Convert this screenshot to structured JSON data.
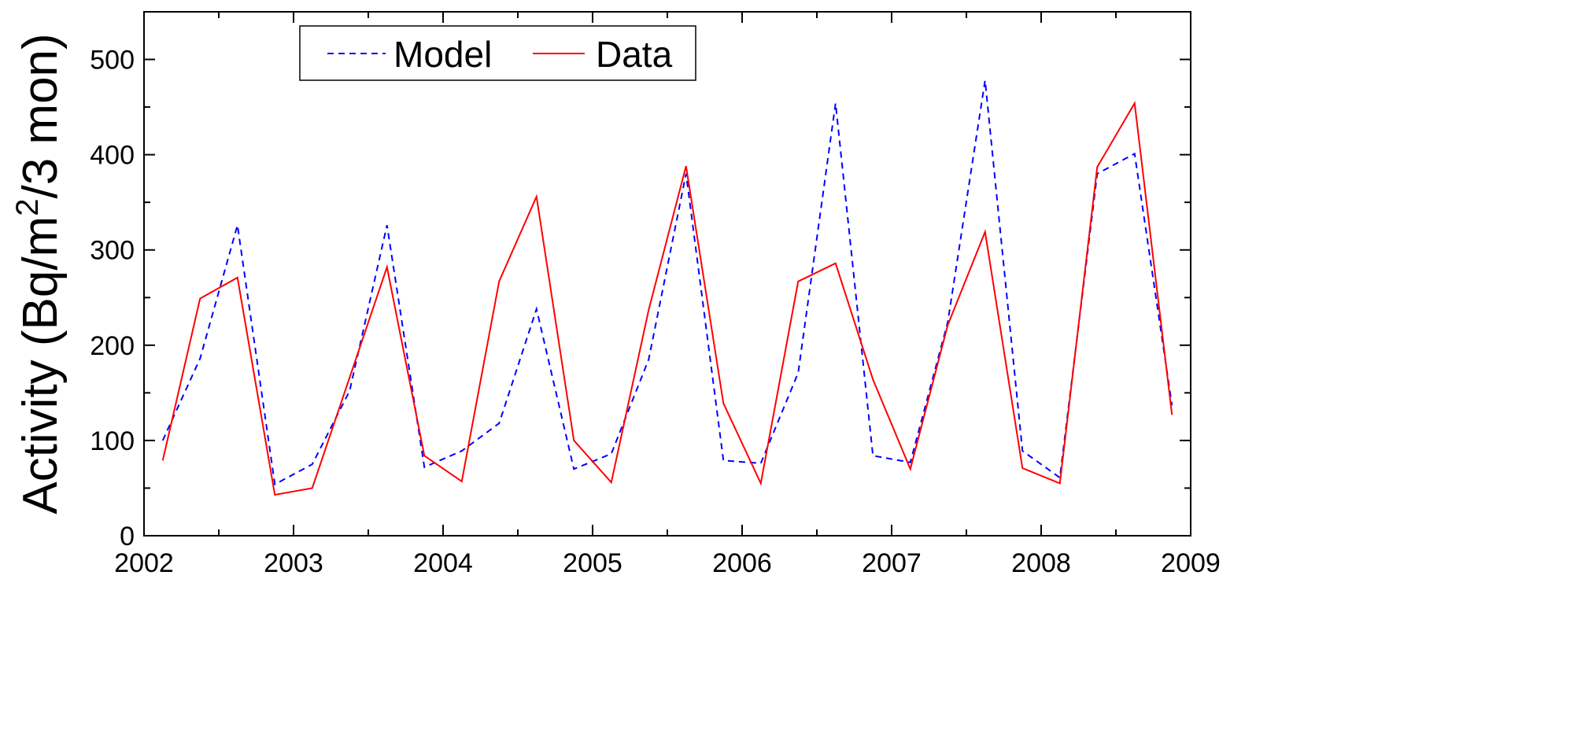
{
  "chart_data": {
    "type": "line",
    "title": "",
    "xlabel": "",
    "ylabel": "Activity (Bq/m",
    "ylabel_sup": "2",
    "ylabel_tail": "/3 mon)",
    "xlim": [
      2002,
      2009
    ],
    "ylim": [
      0,
      550
    ],
    "xticks": [
      "2002",
      "2003",
      "2004",
      "2005",
      "2006",
      "2007",
      "2008",
      "2009"
    ],
    "yticks": [
      "0",
      "100",
      "200",
      "300",
      "400",
      "500"
    ],
    "legend_position": "top-left",
    "x": [
      2002.125,
      2002.375,
      2002.625,
      2002.875,
      2003.125,
      2003.375,
      2003.625,
      2003.875,
      2004.125,
      2004.375,
      2004.625,
      2004.875,
      2005.125,
      2005.375,
      2005.625,
      2005.875,
      2006.125,
      2006.375,
      2006.625,
      2006.875,
      2007.125,
      2007.375,
      2007.625,
      2007.875,
      2008.125,
      2008.375,
      2008.625,
      2008.875
    ],
    "series": [
      {
        "name": "Model",
        "color": "#0000ff",
        "style": "dashed",
        "values": [
          100,
          186,
          326,
          54,
          75,
          152,
          326,
          72,
          89,
          118,
          238,
          70,
          86,
          185,
          380,
          79,
          76,
          171,
          454,
          84,
          77,
          224,
          478,
          89,
          61,
          380,
          401,
          137
        ]
      },
      {
        "name": "Data",
        "color": "#ff0000",
        "style": "solid",
        "values": [
          79,
          249,
          271,
          43,
          50,
          166,
          282,
          84,
          57,
          267,
          356,
          100,
          56,
          237,
          388,
          139,
          55,
          267,
          286,
          164,
          70,
          221,
          319,
          71,
          55,
          387,
          454,
          127
        ]
      }
    ]
  }
}
